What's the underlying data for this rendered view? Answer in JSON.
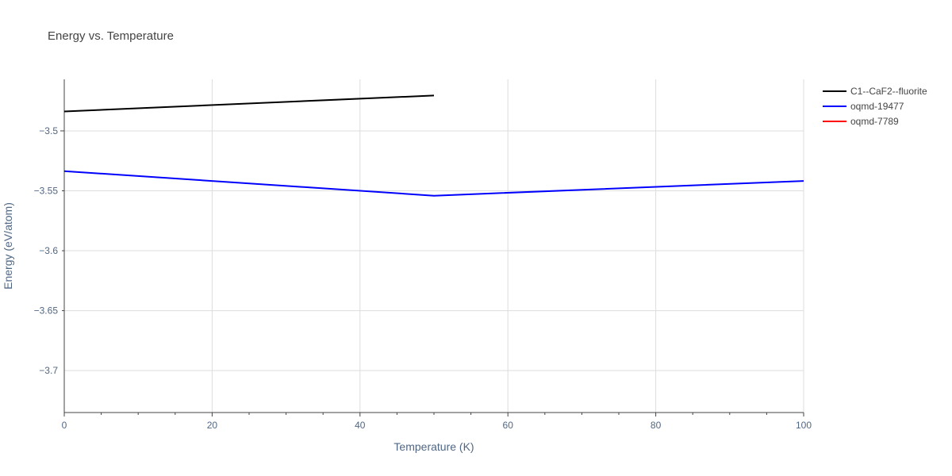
{
  "chart_data": {
    "type": "line",
    "title": "Energy vs. Temperature",
    "xlabel": "Temperature (K)",
    "ylabel": "Energy (eV/atom)",
    "xlim": [
      0,
      100
    ],
    "ylim": [
      -3.735,
      -3.457
    ],
    "xticks": [
      0,
      20,
      40,
      60,
      80,
      100
    ],
    "xtick_labels": [
      "0",
      "20",
      "40",
      "60",
      "80",
      "100"
    ],
    "yticks": [
      -3.5,
      -3.55,
      -3.6,
      -3.65,
      -3.7
    ],
    "ytick_labels": [
      "−3.5",
      "−3.55",
      "−3.6",
      "−3.65",
      "−3.7"
    ],
    "grid": true,
    "legend_position": "right",
    "series": [
      {
        "name": "C1--CaF2--fluorite",
        "color": "#000000",
        "x": [
          0,
          50
        ],
        "y": [
          -3.4838,
          -3.4705
        ]
      },
      {
        "name": "oqmd-19477",
        "color": "#0000ff",
        "x": [
          0,
          50,
          100
        ],
        "y": [
          -3.5336,
          -3.5541,
          -3.5418
        ]
      },
      {
        "name": "oqmd-7789",
        "color": "#ff0000",
        "x": [],
        "y": []
      }
    ]
  }
}
